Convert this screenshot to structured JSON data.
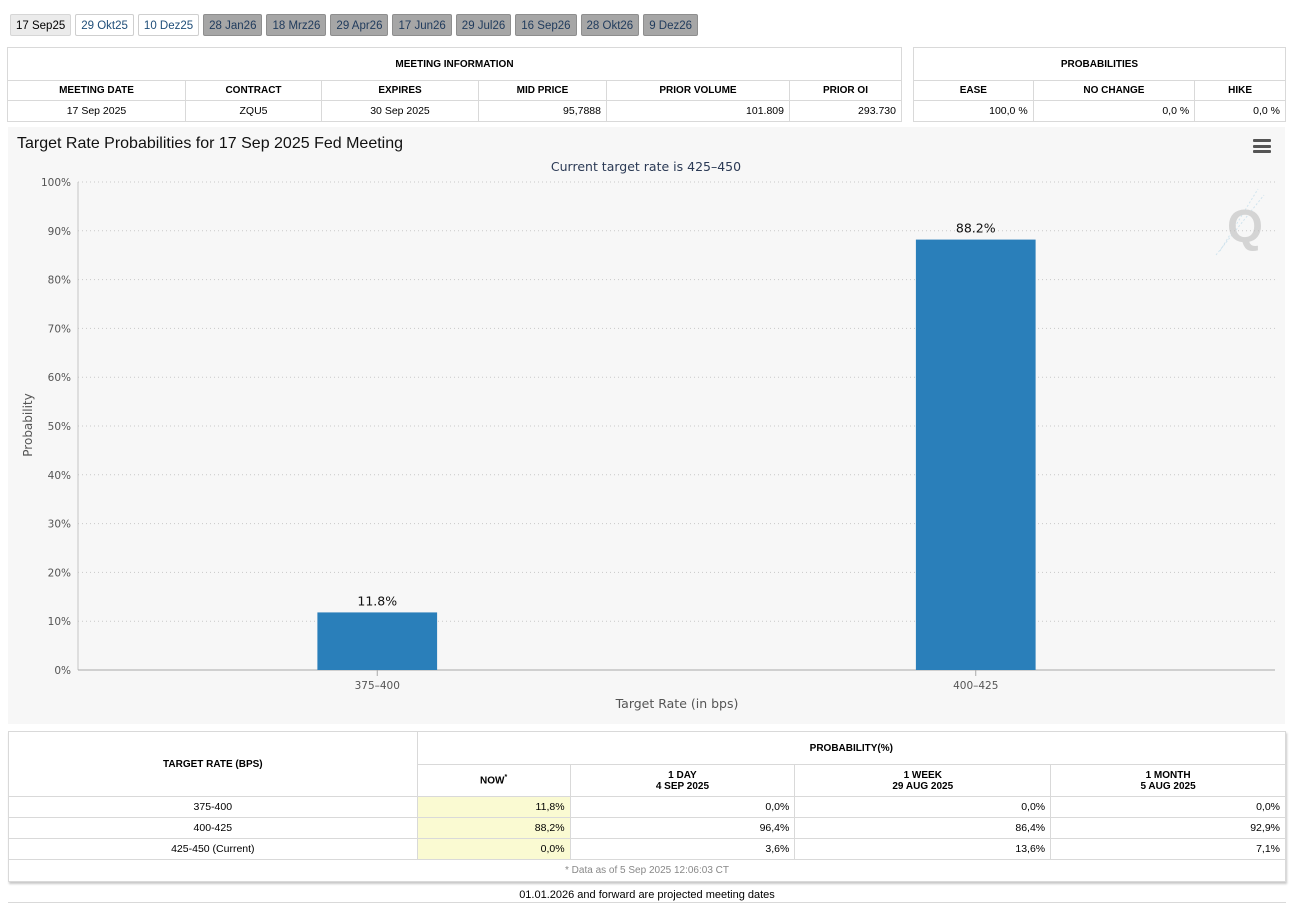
{
  "tabs": [
    {
      "label": "17 Sep25",
      "state": "active"
    },
    {
      "label": "29 Okt25",
      "state": "normal"
    },
    {
      "label": "10 Dez25",
      "state": "normal"
    },
    {
      "label": "28 Jan26",
      "state": "future"
    },
    {
      "label": "18 Mrz26",
      "state": "future"
    },
    {
      "label": "29 Apr26",
      "state": "future"
    },
    {
      "label": "17 Jun26",
      "state": "future"
    },
    {
      "label": "29 Jul26",
      "state": "future"
    },
    {
      "label": "16 Sep26",
      "state": "future"
    },
    {
      "label": "28 Okt26",
      "state": "future"
    },
    {
      "label": "9 Dez26",
      "state": "future"
    }
  ],
  "meeting_info": {
    "header": "MEETING INFORMATION",
    "columns": [
      "MEETING DATE",
      "CONTRACT",
      "EXPIRES",
      "MID PRICE",
      "PRIOR VOLUME",
      "PRIOR OI"
    ],
    "row": [
      "17 Sep 2025",
      "ZQU5",
      "30 Sep 2025",
      "95,7888",
      "101.809",
      "293.730"
    ]
  },
  "probabilities": {
    "header": "PROBABILITIES",
    "columns": [
      "EASE",
      "NO CHANGE",
      "HIKE"
    ],
    "row": [
      "100,0 %",
      "0,0 %",
      "0,0 %"
    ]
  },
  "chart_data": {
    "type": "bar",
    "title": "Target Rate Probabilities for 17 Sep 2025 Fed Meeting",
    "subtitle": "Current target rate is 425–450",
    "categories": [
      "375–400",
      "400–425"
    ],
    "values": [
      11.8,
      88.2
    ],
    "data_labels": [
      "11.8%",
      "88.2%"
    ],
    "xlabel": "Target Rate (in bps)",
    "ylabel": "Probability",
    "ylim": [
      0,
      100
    ],
    "yticks": [
      0,
      10,
      20,
      30,
      40,
      50,
      60,
      70,
      80,
      90,
      100
    ],
    "ytick_labels": [
      "0%",
      "10%",
      "20%",
      "30%",
      "40%",
      "50%",
      "60%",
      "70%",
      "80%",
      "90%",
      "100%"
    ],
    "grid": true,
    "bar_color": "#2a7fba"
  },
  "prob_table": {
    "target_header": "TARGET RATE (BPS)",
    "group_header": "PROBABILITY(%)",
    "columns": [
      {
        "line1": "NOW",
        "line2": "",
        "sup": "*"
      },
      {
        "line1": "1 DAY",
        "line2": "4 SEP 2025",
        "sup": ""
      },
      {
        "line1": "1 WEEK",
        "line2": "29 AUG 2025",
        "sup": ""
      },
      {
        "line1": "1 MONTH",
        "line2": "5 AUG 2025",
        "sup": ""
      }
    ],
    "rows": [
      {
        "rate": "375-400",
        "values": [
          "11,8%",
          "0,0%",
          "0,0%",
          "0,0%"
        ]
      },
      {
        "rate": "400-425",
        "values": [
          "88,2%",
          "96,4%",
          "86,4%",
          "92,9%"
        ]
      },
      {
        "rate": "425-450 (Current)",
        "values": [
          "0,0%",
          "3,6%",
          "13,6%",
          "7,1%"
        ]
      }
    ],
    "footnote": "* Data as of 5 Sep 2025 12:06:03 CT"
  },
  "projected_note": "01.01.2026 and forward are projected meeting dates"
}
